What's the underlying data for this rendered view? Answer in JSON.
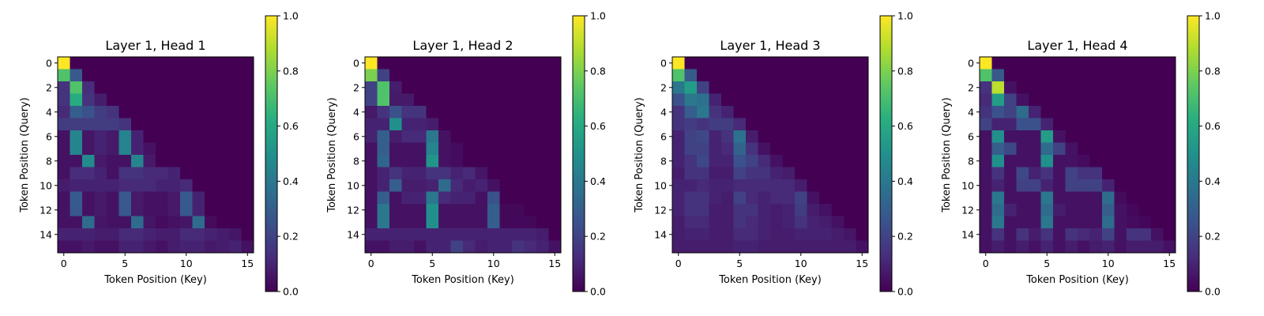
{
  "colorbar": {
    "ticks": [
      "0.0",
      "0.2",
      "0.4",
      "0.6",
      "0.8",
      "1.0"
    ]
  },
  "chart_data": [
    {
      "type": "heatmap",
      "title": "Layer 1, Head 1",
      "xlabel": "Token Position (Key)",
      "ylabel": "Token Position (Query)",
      "xticks": [
        "0",
        "5",
        "10",
        "15"
      ],
      "yticks": [
        "0",
        "2",
        "4",
        "6",
        "8",
        "10",
        "12",
        "14"
      ],
      "clim": [
        0,
        1
      ],
      "colormap": "viridis",
      "matrix": [
        [
          1.0,
          0,
          0,
          0,
          0,
          0,
          0,
          0,
          0,
          0,
          0,
          0,
          0,
          0,
          0,
          0
        ],
        [
          0.72,
          0.28,
          0,
          0,
          0,
          0,
          0,
          0,
          0,
          0,
          0,
          0,
          0,
          0,
          0,
          0
        ],
        [
          0.15,
          0.72,
          0.13,
          0,
          0,
          0,
          0,
          0,
          0,
          0,
          0,
          0,
          0,
          0,
          0,
          0
        ],
        [
          0.15,
          0.62,
          0.15,
          0.08,
          0,
          0,
          0,
          0,
          0,
          0,
          0,
          0,
          0,
          0,
          0,
          0
        ],
        [
          0.12,
          0.3,
          0.25,
          0.18,
          0.15,
          0,
          0,
          0,
          0,
          0,
          0,
          0,
          0,
          0,
          0,
          0
        ],
        [
          0.18,
          0.18,
          0.18,
          0.18,
          0.18,
          0.15,
          0,
          0,
          0,
          0,
          0,
          0,
          0,
          0,
          0,
          0
        ],
        [
          0.05,
          0.45,
          0.06,
          0.1,
          0.07,
          0.45,
          0.1,
          0,
          0,
          0,
          0,
          0,
          0,
          0,
          0,
          0
        ],
        [
          0.05,
          0.45,
          0.06,
          0.1,
          0.07,
          0.45,
          0.1,
          0.05,
          0,
          0,
          0,
          0,
          0,
          0,
          0,
          0
        ],
        [
          0.05,
          0.05,
          0.48,
          0.07,
          0.05,
          0.05,
          0.45,
          0.07,
          0,
          0,
          0,
          0,
          0,
          0,
          0,
          0
        ],
        [
          0.05,
          0.13,
          0.13,
          0.1,
          0.05,
          0.15,
          0.15,
          0.12,
          0.12,
          0.1,
          0,
          0,
          0,
          0,
          0,
          0
        ],
        [
          0.08,
          0.1,
          0.1,
          0.1,
          0.1,
          0.12,
          0.12,
          0.12,
          0.1,
          0.1,
          0.12,
          0,
          0,
          0,
          0,
          0
        ],
        [
          0.05,
          0.28,
          0.05,
          0.07,
          0.05,
          0.28,
          0.07,
          0.05,
          0.05,
          0.07,
          0.28,
          0.1,
          0,
          0,
          0,
          0
        ],
        [
          0.05,
          0.28,
          0.05,
          0.07,
          0.05,
          0.28,
          0.07,
          0.05,
          0.05,
          0.07,
          0.28,
          0.1,
          0,
          0,
          0,
          0
        ],
        [
          0.05,
          0.05,
          0.35,
          0.06,
          0.05,
          0.05,
          0.35,
          0.06,
          0.03,
          0.05,
          0.06,
          0.35,
          0.03,
          0,
          0,
          0
        ],
        [
          0.1,
          0.1,
          0.1,
          0.08,
          0.08,
          0.12,
          0.12,
          0.1,
          0.08,
          0.08,
          0.12,
          0.12,
          0.1,
          0.08,
          0.06,
          0
        ],
        [
          0.05,
          0.05,
          0.07,
          0.05,
          0.05,
          0.1,
          0.1,
          0.07,
          0.05,
          0.08,
          0.1,
          0.1,
          0.07,
          0.08,
          0.1,
          0.05
        ]
      ]
    },
    {
      "type": "heatmap",
      "title": "Layer 1, Head 2",
      "xlabel": "Token Position (Key)",
      "ylabel": "Token Position (Query)",
      "xticks": [
        "0",
        "5",
        "10",
        "15"
      ],
      "yticks": [
        "0",
        "2",
        "4",
        "6",
        "8",
        "10",
        "12",
        "14"
      ],
      "clim": [
        0,
        1
      ],
      "colormap": "viridis",
      "matrix": [
        [
          1.0,
          0,
          0,
          0,
          0,
          0,
          0,
          0,
          0,
          0,
          0,
          0,
          0,
          0,
          0,
          0
        ],
        [
          0.8,
          0.2,
          0,
          0,
          0,
          0,
          0,
          0,
          0,
          0,
          0,
          0,
          0,
          0,
          0,
          0
        ],
        [
          0.2,
          0.72,
          0.08,
          0,
          0,
          0,
          0,
          0,
          0,
          0,
          0,
          0,
          0,
          0,
          0,
          0
        ],
        [
          0.2,
          0.72,
          0.07,
          0.07,
          0,
          0,
          0,
          0,
          0,
          0,
          0,
          0,
          0,
          0,
          0,
          0
        ],
        [
          0.07,
          0.15,
          0.25,
          0.15,
          0.15,
          0,
          0,
          0,
          0,
          0,
          0,
          0,
          0,
          0,
          0,
          0
        ],
        [
          0.1,
          0.1,
          0.5,
          0.1,
          0.1,
          0.08,
          0,
          0,
          0,
          0,
          0,
          0,
          0,
          0,
          0,
          0
        ],
        [
          0.1,
          0.3,
          0.08,
          0.12,
          0.12,
          0.4,
          0.05,
          0,
          0,
          0,
          0,
          0,
          0,
          0,
          0,
          0
        ],
        [
          0.05,
          0.3,
          0.05,
          0.05,
          0.05,
          0.45,
          0.05,
          0.03,
          0,
          0,
          0,
          0,
          0,
          0,
          0,
          0
        ],
        [
          0.05,
          0.33,
          0.05,
          0.05,
          0.05,
          0.52,
          0.05,
          0.03,
          0,
          0,
          0,
          0,
          0,
          0,
          0,
          0
        ],
        [
          0.05,
          0.1,
          0.15,
          0.1,
          0.1,
          0.15,
          0.15,
          0.1,
          0.12,
          0.06,
          0,
          0,
          0,
          0,
          0,
          0
        ],
        [
          0.05,
          0.1,
          0.3,
          0.08,
          0.08,
          0.1,
          0.35,
          0.12,
          0.08,
          0.1,
          0.05,
          0,
          0,
          0,
          0,
          0
        ],
        [
          0.05,
          0.3,
          0.05,
          0.1,
          0.1,
          0.4,
          0.12,
          0.1,
          0.1,
          0.05,
          0.25,
          0,
          0,
          0,
          0,
          0
        ],
        [
          0.05,
          0.4,
          0.05,
          0.05,
          0.05,
          0.5,
          0.05,
          0.05,
          0.05,
          0.05,
          0.3,
          0.02,
          0.02,
          0,
          0,
          0
        ],
        [
          0.05,
          0.4,
          0.05,
          0.05,
          0.05,
          0.5,
          0.05,
          0.05,
          0.05,
          0.05,
          0.3,
          0.02,
          0.02,
          0.02,
          0,
          0
        ],
        [
          0.1,
          0.1,
          0.1,
          0.1,
          0.1,
          0.1,
          0.1,
          0.1,
          0.1,
          0.1,
          0.1,
          0.1,
          0.1,
          0.1,
          0.08,
          0
        ],
        [
          0.05,
          0.05,
          0.08,
          0.08,
          0.05,
          0.1,
          0.1,
          0.2,
          0.12,
          0.08,
          0.1,
          0.1,
          0.15,
          0.12,
          0.1,
          0.05
        ]
      ]
    },
    {
      "type": "heatmap",
      "title": "Layer 1, Head 3",
      "xlabel": "Token Position (Key)",
      "ylabel": "Token Position (Query)",
      "xticks": [
        "0",
        "5",
        "10",
        "15"
      ],
      "yticks": [
        "0",
        "2",
        "4",
        "6",
        "8",
        "10",
        "12",
        "14"
      ],
      "clim": [
        0,
        1
      ],
      "colormap": "viridis",
      "matrix": [
        [
          1.0,
          0,
          0,
          0,
          0,
          0,
          0,
          0,
          0,
          0,
          0,
          0,
          0,
          0,
          0,
          0
        ],
        [
          0.72,
          0.28,
          0,
          0,
          0,
          0,
          0,
          0,
          0,
          0,
          0,
          0,
          0,
          0,
          0,
          0
        ],
        [
          0.4,
          0.55,
          0.2,
          0,
          0,
          0,
          0,
          0,
          0,
          0,
          0,
          0,
          0,
          0,
          0,
          0
        ],
        [
          0.25,
          0.4,
          0.38,
          0.1,
          0,
          0,
          0,
          0,
          0,
          0,
          0,
          0,
          0,
          0,
          0,
          0
        ],
        [
          0.15,
          0.3,
          0.4,
          0.15,
          0.1,
          0,
          0,
          0,
          0,
          0,
          0,
          0,
          0,
          0,
          0,
          0
        ],
        [
          0.15,
          0.18,
          0.15,
          0.18,
          0.18,
          0.12,
          0,
          0,
          0,
          0,
          0,
          0,
          0,
          0,
          0,
          0
        ],
        [
          0.1,
          0.2,
          0.22,
          0.1,
          0.15,
          0.38,
          0.08,
          0,
          0,
          0,
          0,
          0,
          0,
          0,
          0,
          0
        ],
        [
          0.1,
          0.2,
          0.2,
          0.1,
          0.12,
          0.32,
          0.15,
          0.05,
          0,
          0,
          0,
          0,
          0,
          0,
          0,
          0
        ],
        [
          0.1,
          0.15,
          0.22,
          0.1,
          0.1,
          0.25,
          0.2,
          0.12,
          0.05,
          0,
          0,
          0,
          0,
          0,
          0,
          0
        ],
        [
          0.08,
          0.15,
          0.15,
          0.08,
          0.08,
          0.2,
          0.15,
          0.15,
          0.1,
          0.08,
          0,
          0,
          0,
          0,
          0,
          0
        ],
        [
          0.1,
          0.1,
          0.12,
          0.1,
          0.1,
          0.12,
          0.12,
          0.12,
          0.12,
          0.12,
          0.08,
          0,
          0,
          0,
          0,
          0
        ],
        [
          0.1,
          0.15,
          0.15,
          0.1,
          0.08,
          0.2,
          0.12,
          0.1,
          0.12,
          0.12,
          0.2,
          0.05,
          0,
          0,
          0,
          0
        ],
        [
          0.1,
          0.15,
          0.15,
          0.08,
          0.08,
          0.15,
          0.15,
          0.1,
          0.08,
          0.1,
          0.18,
          0.08,
          0.05,
          0,
          0,
          0
        ],
        [
          0.08,
          0.12,
          0.12,
          0.08,
          0.08,
          0.15,
          0.12,
          0.1,
          0.08,
          0.1,
          0.15,
          0.1,
          0.08,
          0.05,
          0,
          0
        ],
        [
          0.08,
          0.1,
          0.1,
          0.08,
          0.08,
          0.12,
          0.12,
          0.1,
          0.08,
          0.08,
          0.1,
          0.1,
          0.1,
          0.08,
          0.06,
          0
        ],
        [
          0.08,
          0.08,
          0.08,
          0.08,
          0.08,
          0.1,
          0.1,
          0.08,
          0.08,
          0.08,
          0.08,
          0.08,
          0.08,
          0.08,
          0.08,
          0.05
        ]
      ]
    },
    {
      "type": "heatmap",
      "title": "Layer 1, Head 4",
      "xlabel": "Token Position (Key)",
      "ylabel": "Token Position (Query)",
      "xticks": [
        "0",
        "5",
        "10",
        "15"
      ],
      "yticks": [
        "0",
        "2",
        "4",
        "6",
        "8",
        "10",
        "12",
        "14"
      ],
      "clim": [
        0,
        1
      ],
      "colormap": "viridis",
      "matrix": [
        [
          1.0,
          0,
          0,
          0,
          0,
          0,
          0,
          0,
          0,
          0,
          0,
          0,
          0,
          0,
          0,
          0
        ],
        [
          0.72,
          0.28,
          0,
          0,
          0,
          0,
          0,
          0,
          0,
          0,
          0,
          0,
          0,
          0,
          0,
          0
        ],
        [
          0.15,
          0.9,
          0.05,
          0,
          0,
          0,
          0,
          0,
          0,
          0,
          0,
          0,
          0,
          0,
          0,
          0
        ],
        [
          0.12,
          0.55,
          0.2,
          0.05,
          0,
          0,
          0,
          0,
          0,
          0,
          0,
          0,
          0,
          0,
          0,
          0
        ],
        [
          0.15,
          0.25,
          0.2,
          0.35,
          0.1,
          0,
          0,
          0,
          0,
          0,
          0,
          0,
          0,
          0,
          0,
          0
        ],
        [
          0.2,
          0.1,
          0.1,
          0.25,
          0.25,
          0.1,
          0,
          0,
          0,
          0,
          0,
          0,
          0,
          0,
          0,
          0
        ],
        [
          0.05,
          0.5,
          0.05,
          0.05,
          0.05,
          0.55,
          0.05,
          0,
          0,
          0,
          0,
          0,
          0,
          0,
          0,
          0
        ],
        [
          0.05,
          0.3,
          0.22,
          0.05,
          0.05,
          0.35,
          0.2,
          0.05,
          0,
          0,
          0,
          0,
          0,
          0,
          0,
          0
        ],
        [
          0.05,
          0.5,
          0.05,
          0.05,
          0.05,
          0.5,
          0.05,
          0.05,
          0.03,
          0,
          0,
          0,
          0,
          0,
          0,
          0
        ],
        [
          0.05,
          0.15,
          0.05,
          0.22,
          0.1,
          0.15,
          0.05,
          0.2,
          0.15,
          0.15,
          0,
          0,
          0,
          0,
          0,
          0
        ],
        [
          0.05,
          0.1,
          0.05,
          0.2,
          0.2,
          0.1,
          0.05,
          0.2,
          0.2,
          0.2,
          0.1,
          0,
          0,
          0,
          0,
          0
        ],
        [
          0.05,
          0.4,
          0.05,
          0.05,
          0.05,
          0.4,
          0.05,
          0.05,
          0.05,
          0.05,
          0.35,
          0.03,
          0,
          0,
          0,
          0
        ],
        [
          0.05,
          0.35,
          0.1,
          0.05,
          0.05,
          0.35,
          0.08,
          0.05,
          0.05,
          0.05,
          0.3,
          0.05,
          0.02,
          0,
          0,
          0
        ],
        [
          0.05,
          0.4,
          0.05,
          0.05,
          0.05,
          0.4,
          0.05,
          0.05,
          0.05,
          0.05,
          0.35,
          0.05,
          0.03,
          0.02,
          0,
          0
        ],
        [
          0.05,
          0.15,
          0.05,
          0.15,
          0.08,
          0.15,
          0.05,
          0.15,
          0.12,
          0.1,
          0.2,
          0.05,
          0.15,
          0.15,
          0.05,
          0
        ],
        [
          0.05,
          0.08,
          0.05,
          0.08,
          0.05,
          0.1,
          0.05,
          0.08,
          0.05,
          0.08,
          0.1,
          0.05,
          0.08,
          0.08,
          0.08,
          0.05
        ]
      ]
    }
  ]
}
